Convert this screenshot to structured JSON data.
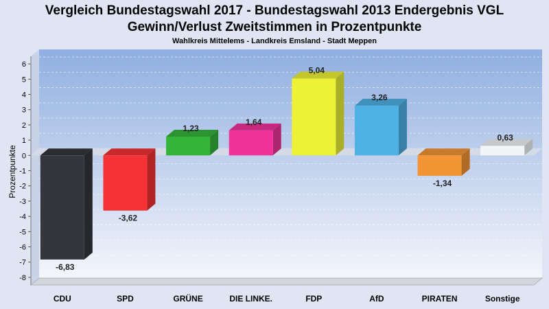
{
  "chart_data": {
    "type": "bar",
    "title": "Vergleich Bundestagswahl 2017 - Bundestagswahl 2013 Endergebnis VGL",
    "title_line2": "Gewinn/Verlust Zweitstimmen in Prozentpunkte",
    "subtitle": "Wahlkreis Mittelems - Landkreis Emsland - Stadt Meppen",
    "ylabel": "Prozentpunkte",
    "xlabel": "",
    "categories": [
      "CDU",
      "SPD",
      "GRÜNE",
      "DIE LINKE.",
      "FDP",
      "AfD",
      "PIRATEN",
      "Sonstige"
    ],
    "values": [
      -6.83,
      -3.62,
      1.23,
      1.64,
      5.04,
      3.26,
      -1.34,
      0.63
    ],
    "value_labels": [
      "-6,83",
      "-3,62",
      "1,23",
      "1,64",
      "5,04",
      "3,26",
      "-1,34",
      "0,63"
    ],
    "colors": [
      "#34363b",
      "#f53236",
      "#34b53a",
      "#f0339a",
      "#eef237",
      "#4eb2e5",
      "#f49535",
      "#f3f4f7"
    ],
    "ylim": [
      -8.5,
      6.5
    ],
    "yticks": [
      6,
      5,
      4,
      3,
      2,
      1,
      0,
      -1,
      -2,
      -3,
      -4,
      -5,
      -6,
      -7,
      -8
    ],
    "ytick_labels": [
      "6",
      "5",
      "4",
      "3",
      "2",
      "1",
      "0",
      "-1",
      "-2",
      "-3",
      "-4",
      "-5",
      "-6",
      "-7",
      "-8"
    ],
    "grid": true,
    "legend": "none"
  }
}
